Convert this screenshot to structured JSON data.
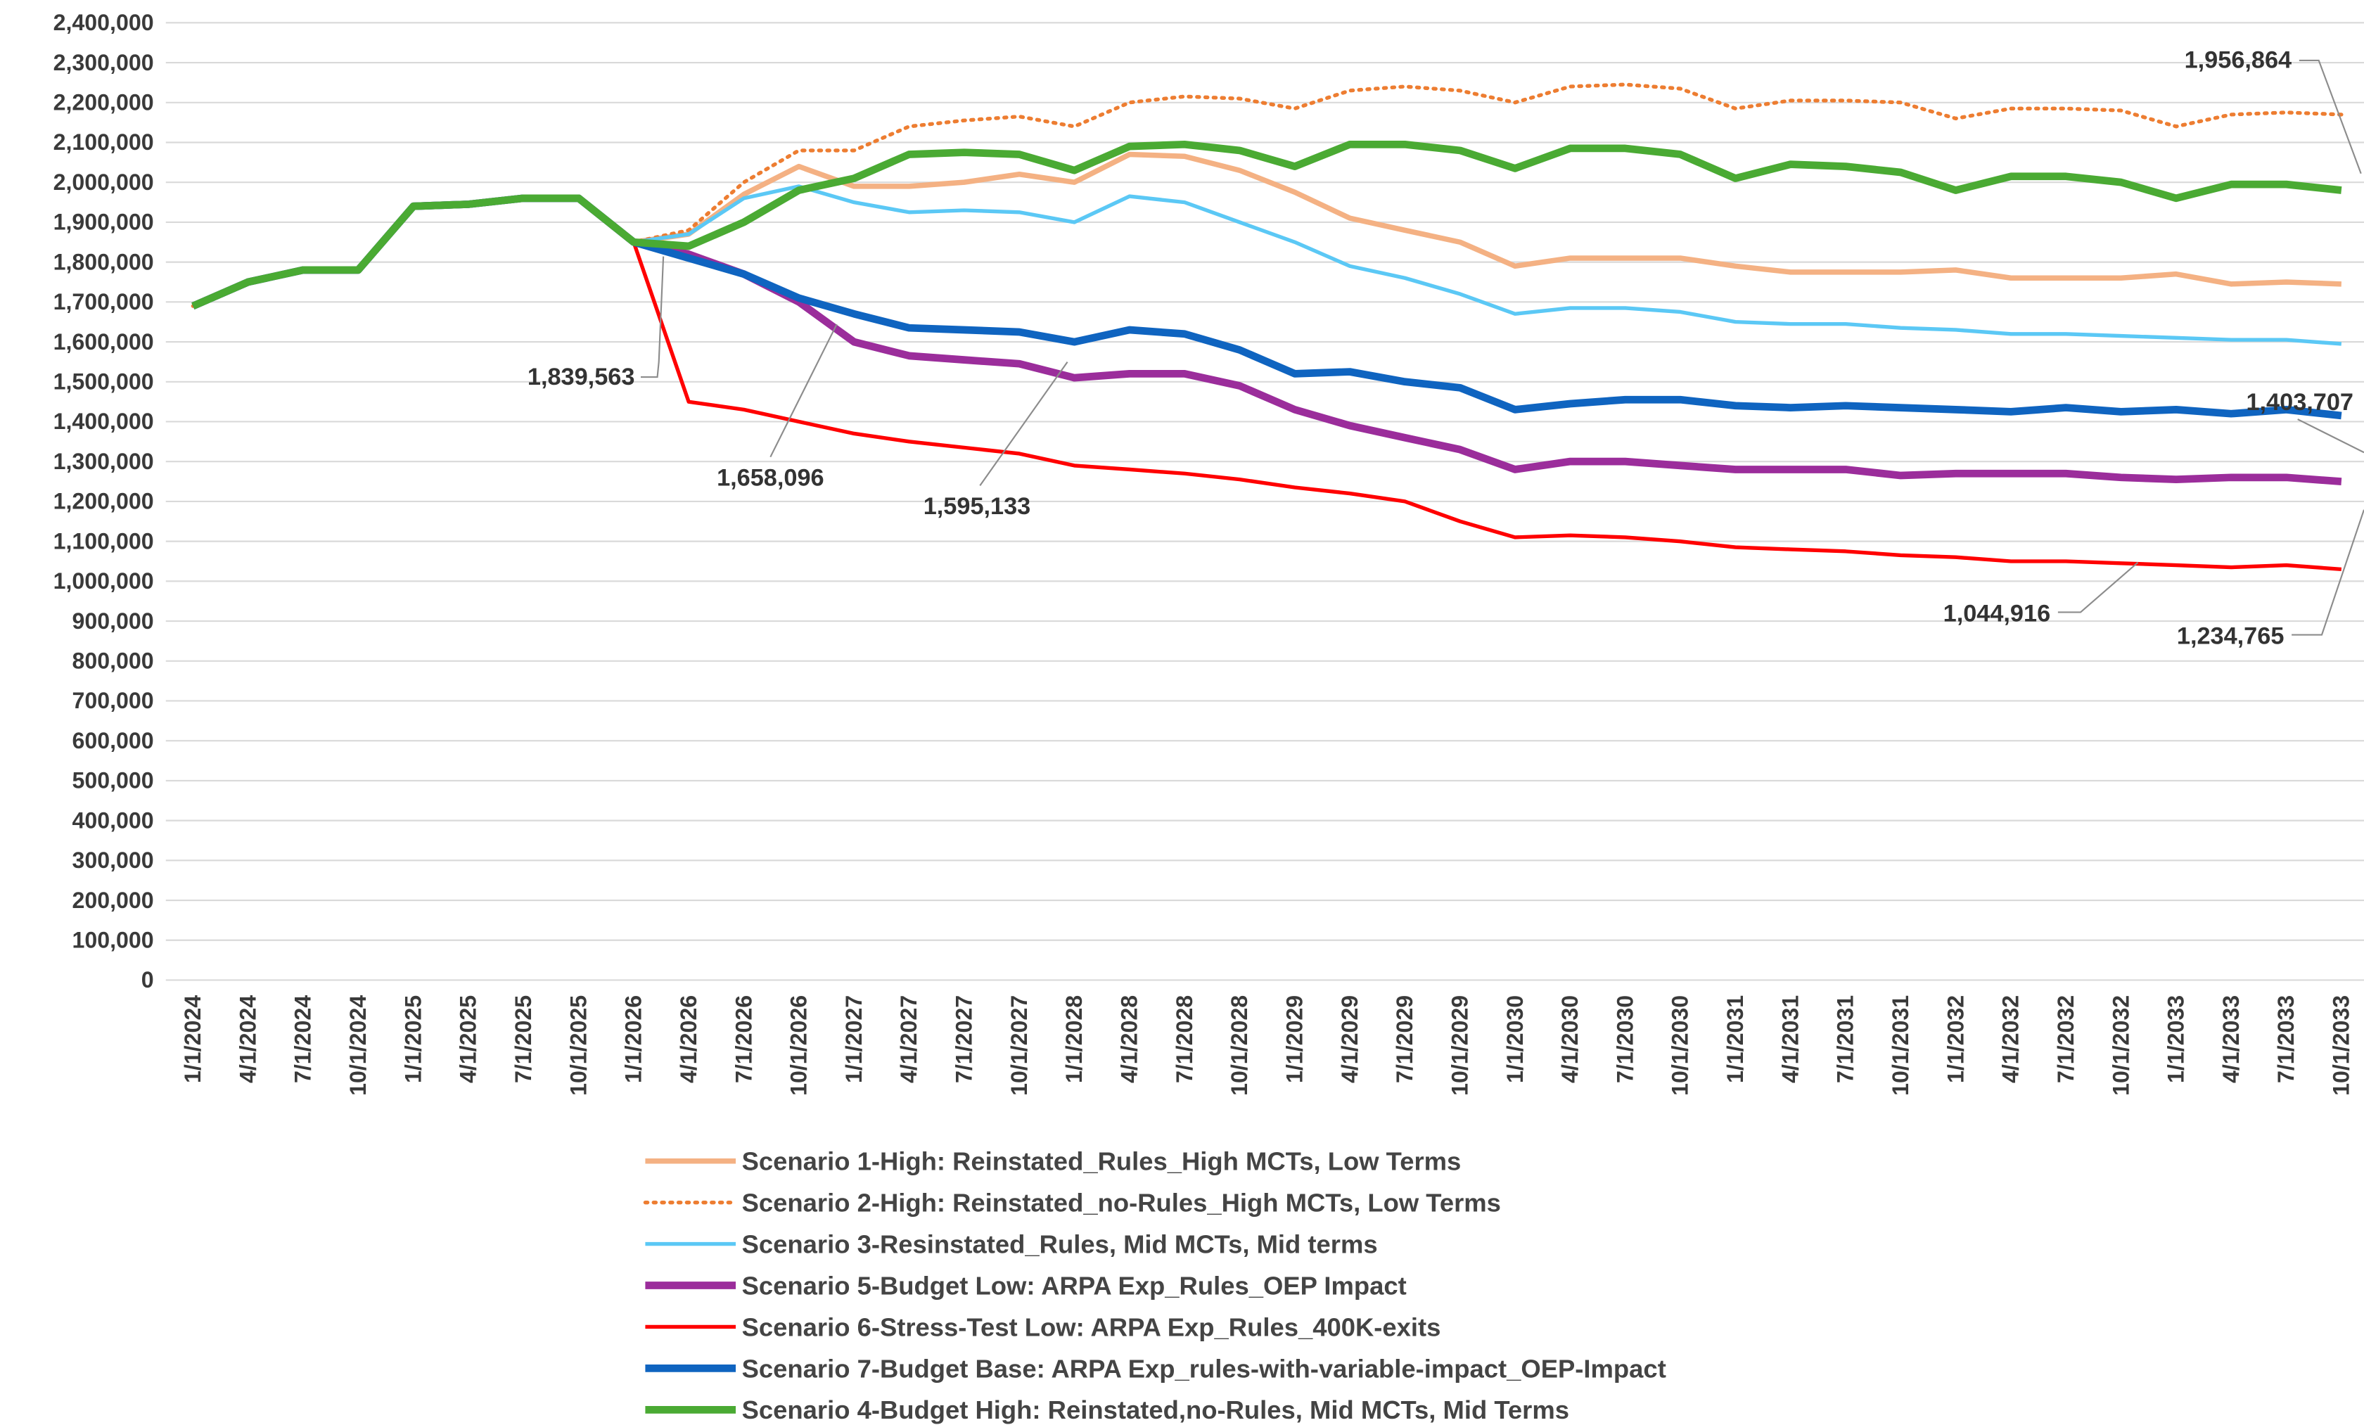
{
  "chart_data": {
    "type": "line",
    "categories": [
      "1/1/2024",
      "4/1/2024",
      "7/1/2024",
      "10/1/2024",
      "1/1/2025",
      "4/1/2025",
      "7/1/2025",
      "10/1/2025",
      "1/1/2026",
      "4/1/2026",
      "7/1/2026",
      "10/1/2026",
      "1/1/2027",
      "4/1/2027",
      "7/1/2027",
      "10/1/2027",
      "1/1/2028",
      "4/1/2028",
      "7/1/2028",
      "10/1/2028",
      "1/1/2029",
      "4/1/2029",
      "7/1/2029",
      "10/1/2029",
      "1/1/2030",
      "4/1/2030",
      "7/1/2030",
      "10/1/2030",
      "1/1/2031",
      "4/1/2031",
      "7/1/2031",
      "10/1/2031",
      "1/1/2032",
      "4/1/2032",
      "7/1/2032",
      "10/1/2032",
      "1/1/2033",
      "4/1/2033",
      "7/1/2033",
      "10/1/2033"
    ],
    "ylim": [
      0,
      2400000
    ],
    "yticks": [
      0,
      {
        "value": 100000,
        "label": "100,000"
      },
      {
        "value": 200000,
        "label": "200,000"
      },
      {
        "value": 300000,
        "label": "300,000"
      },
      {
        "value": 400000,
        "label": "400,000"
      },
      {
        "value": 500000,
        "label": "500,000"
      },
      {
        "value": 600000,
        "label": "600,000"
      },
      {
        "value": 700000,
        "label": "700,000"
      },
      {
        "value": 800000,
        "label": "800,000"
      },
      {
        "value": 900000,
        "label": "900,000"
      },
      {
        "value": 1000000,
        "label": "1,000,000"
      },
      {
        "value": 1100000,
        "label": "1,100,000"
      },
      {
        "value": 1200000,
        "label": "1,200,000"
      },
      {
        "value": 1300000,
        "label": "1,300,000"
      },
      {
        "value": 1400000,
        "label": "1,400,000"
      },
      {
        "value": 1500000,
        "label": "1,500,000"
      },
      {
        "value": 1600000,
        "label": "1,600,000"
      },
      {
        "value": 1700000,
        "label": "1,700,000"
      },
      {
        "value": 1800000,
        "label": "1,800,000"
      },
      {
        "value": 1900000,
        "label": "1,900,000"
      },
      {
        "value": 2000000,
        "label": "2,000,000"
      },
      {
        "value": 2100000,
        "label": "2,100,000"
      },
      {
        "value": 2200000,
        "label": "2,200,000"
      },
      {
        "value": 2300000,
        "label": "2,300,000"
      },
      {
        "value": 2400000,
        "label": "2,400,000"
      }
    ],
    "grid": true,
    "series": [
      {
        "name": "Scenario 1-High: Reinstated_Rules_High MCTs, Low Terms",
        "color": "#f4b183",
        "dash": false,
        "values": [
          1690000,
          1750000,
          1780000,
          1780000,
          1940000,
          1945000,
          1960000,
          1960000,
          1850000,
          1870000,
          1970000,
          2040000,
          1990000,
          1990000,
          2000000,
          2020000,
          2000000,
          2070000,
          2065000,
          2030000,
          1975000,
          1910000,
          1880000,
          1850000,
          1790000,
          1810000,
          1810000,
          1810000,
          1790000,
          1775000,
          1775000,
          1775000,
          1780000,
          1760000,
          1760000,
          1760000,
          1770000,
          1745000,
          1750000,
          1745000
        ]
      },
      {
        "name": "Scenario 2-High: Reinstated_no-Rules_High MCTs, Low Terms",
        "color": "#ed7d31",
        "dash": true,
        "values": [
          1690000,
          1750000,
          1780000,
          1780000,
          1940000,
          1945000,
          1960000,
          1960000,
          1850000,
          1880000,
          2000000,
          2080000,
          2080000,
          2140000,
          2155000,
          2165000,
          2140000,
          2200000,
          2215000,
          2210000,
          2185000,
          2230000,
          2240000,
          2230000,
          2200000,
          2240000,
          2245000,
          2235000,
          2185000,
          2205000,
          2205000,
          2200000,
          2160000,
          2185000,
          2185000,
          2180000,
          2140000,
          2170000,
          2175000,
          2170000
        ]
      },
      {
        "name": "Scenario 3-Resinstated_Rules, Mid MCTs, Mid terms",
        "color": "#5bc8f5",
        "dash": false,
        "values": [
          1690000,
          1750000,
          1780000,
          1780000,
          1940000,
          1945000,
          1960000,
          1960000,
          1850000,
          1870000,
          1960000,
          1990000,
          1950000,
          1925000,
          1930000,
          1925000,
          1900000,
          1965000,
          1950000,
          1900000,
          1850000,
          1790000,
          1760000,
          1720000,
          1670000,
          1685000,
          1685000,
          1675000,
          1650000,
          1645000,
          1645000,
          1635000,
          1630000,
          1620000,
          1620000,
          1615000,
          1610000,
          1605000,
          1605000,
          1595000
        ]
      },
      {
        "name": "Scenario 5-Budget Low: ARPA Exp_Rules_OEP Impact",
        "color": "#9b2d9b",
        "dash": false,
        "values": [
          1690000,
          1750000,
          1780000,
          1780000,
          1940000,
          1945000,
          1960000,
          1960000,
          1850000,
          1820000,
          1770000,
          1700000,
          1600000,
          1565000,
          1555000,
          1545000,
          1510000,
          1520000,
          1520000,
          1490000,
          1430000,
          1390000,
          1360000,
          1330000,
          1280000,
          1300000,
          1300000,
          1290000,
          1280000,
          1280000,
          1280000,
          1265000,
          1270000,
          1270000,
          1270000,
          1260000,
          1255000,
          1260000,
          1260000,
          1250000
        ]
      },
      {
        "name": "Scenario 6-Stress-Test Low: ARPA Exp_Rules_400K-exits",
        "color": "#ff0000",
        "dash": false,
        "values": [
          1690000,
          1750000,
          1780000,
          1780000,
          1940000,
          1945000,
          1960000,
          1960000,
          1850000,
          1450000,
          1430000,
          1400000,
          1370000,
          1350000,
          1335000,
          1320000,
          1290000,
          1280000,
          1270000,
          1255000,
          1235000,
          1220000,
          1200000,
          1150000,
          1110000,
          1115000,
          1110000,
          1100000,
          1085000,
          1080000,
          1075000,
          1065000,
          1060000,
          1050000,
          1050000,
          1045000,
          1040000,
          1035000,
          1040000,
          1030000
        ]
      },
      {
        "name": "Scenario 7-Budget Base: ARPA Exp_rules-with-variable-impact_OEP-Impact",
        "color": "#0f64c0",
        "dash": false,
        "values": [
          1690000,
          1750000,
          1780000,
          1780000,
          1940000,
          1945000,
          1960000,
          1960000,
          1850000,
          1810000,
          1770000,
          1710000,
          1670000,
          1635000,
          1630000,
          1625000,
          1600000,
          1630000,
          1620000,
          1580000,
          1520000,
          1525000,
          1500000,
          1485000,
          1430000,
          1445000,
          1455000,
          1455000,
          1440000,
          1435000,
          1440000,
          1435000,
          1430000,
          1425000,
          1435000,
          1425000,
          1430000,
          1420000,
          1430000,
          1415000
        ]
      },
      {
        "name": "Scenario 4-Budget High: Reinstated,no-Rules, Mid MCTs, Mid Terms",
        "color": "#4aaa33",
        "dash": false,
        "values": [
          1690000,
          1750000,
          1780000,
          1780000,
          1940000,
          1945000,
          1960000,
          1960000,
          1850000,
          1840000,
          1900000,
          1980000,
          2010000,
          2070000,
          2075000,
          2070000,
          2030000,
          2090000,
          2095000,
          2080000,
          2040000,
          2095000,
          2095000,
          2080000,
          2035000,
          2085000,
          2085000,
          2070000,
          2010000,
          2045000,
          2040000,
          2025000,
          1980000,
          2015000,
          2015000,
          2000000,
          1960000,
          1995000,
          1995000,
          1980000
        ]
      }
    ],
    "annotations": [
      "1,956,864",
      "1,403,707",
      "1,839,563",
      "1,658,096",
      "1,595,133",
      "1,044,916",
      "1,234,765"
    ]
  }
}
